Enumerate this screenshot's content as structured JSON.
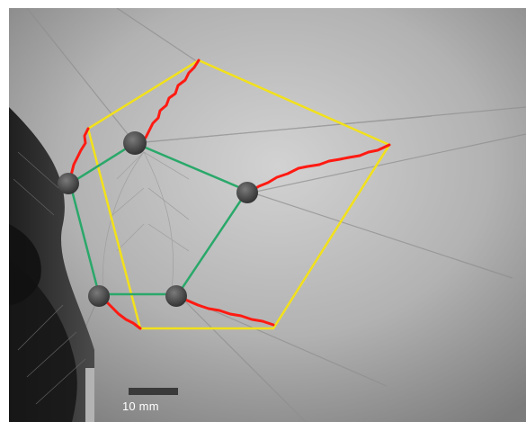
{
  "figure": {
    "scale_bar_label": "10 mm"
  },
  "colors": {
    "background": "#ffffff",
    "photo_light": "#b9b9b9",
    "photo_dark": "#2a2a2a",
    "outer_pentagon": "#f2e11b",
    "inner_pentagon": "#2aa86a",
    "crack_traces": "#ff1a12",
    "markers": "#4a4a4a",
    "scale_bar": "#3a3a3a"
  }
}
